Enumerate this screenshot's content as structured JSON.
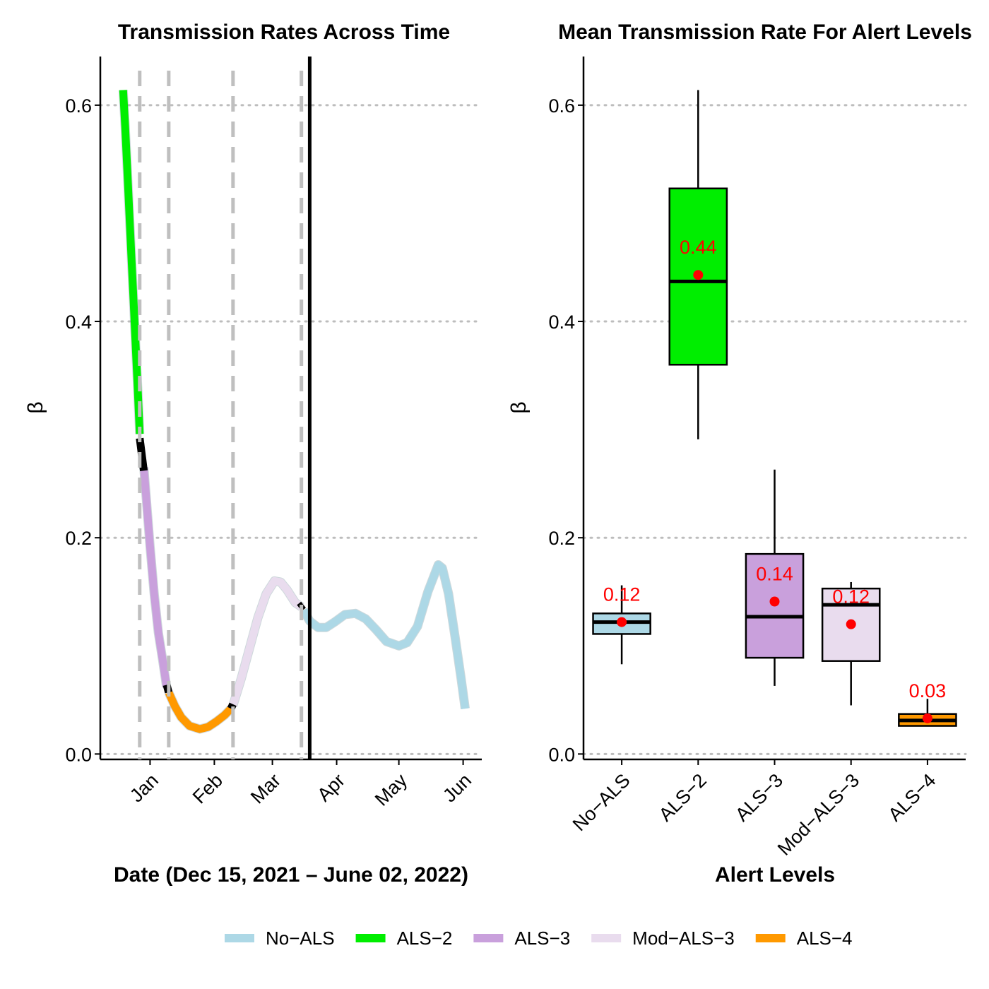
{
  "colors": {
    "No-ALS": "#add8e6",
    "ALS-2": "#00ee00",
    "ALS-3": "#c9a0dc",
    "Mod-ALS-3": "#e9dcee",
    "ALS-4": "#ff9900",
    "mean_point": "#ff0000",
    "grid": "#bdbdbd",
    "dashed_lines": "#bfbfbf"
  },
  "chart_data": [
    {
      "type": "line",
      "title": "Transmission Rates Across Time",
      "xlabel": "Date (Dec 15, 2021 – June 02, 2022)",
      "ylabel": "β",
      "x_ticks": [
        "Jan",
        "Feb",
        "Mar",
        "Apr",
        "May",
        "Jun"
      ],
      "x_tick_dates": [
        "2022-01-01",
        "2022-02-01",
        "2022-03-01",
        "2022-04-01",
        "2022-05-01",
        "2022-06-01"
      ],
      "y_ticks": [
        "0.0",
        "0.2",
        "0.4",
        "0.6"
      ],
      "xlim": [
        "2021-12-08",
        "2022-06-10"
      ],
      "ylim": [
        -0.005,
        0.645
      ],
      "grid": "horizontal dotted",
      "legend_position": "bottom",
      "dashed_vlines": [
        "2021-12-27",
        "2022-01-10",
        "2022-02-10",
        "2022-03-15"
      ],
      "solid_vline": "2022-03-19",
      "series": [
        {
          "name": "ALS-2",
          "x": [
            "2021-12-19",
            "2021-12-20",
            "2021-12-21",
            "2021-12-22",
            "2021-12-23",
            "2021-12-24",
            "2021-12-25",
            "2021-12-26",
            "2021-12-27"
          ],
          "y": [
            0.614,
            0.58,
            0.54,
            0.5,
            0.46,
            0.42,
            0.38,
            0.34,
            0.296
          ]
        },
        {
          "name": "ALS-3",
          "x": [
            "2021-12-29",
            "2022-01-01",
            "2022-01-03",
            "2022-01-05",
            "2022-01-07",
            "2022-01-09"
          ],
          "y": [
            0.265,
            0.192,
            0.148,
            0.112,
            0.088,
            0.062
          ]
        },
        {
          "name": "ALS-4",
          "x": [
            "2022-01-10",
            "2022-01-13",
            "2022-01-16",
            "2022-01-20",
            "2022-01-25",
            "2022-01-29",
            "2022-02-02",
            "2022-02-06",
            "2022-02-09"
          ],
          "y": [
            0.057,
            0.044,
            0.034,
            0.026,
            0.023,
            0.025,
            0.03,
            0.036,
            0.042
          ]
        },
        {
          "name": "Mod-ALS-3",
          "x": [
            "2022-02-10",
            "2022-02-14",
            "2022-02-18",
            "2022-02-22",
            "2022-02-26",
            "2022-03-02",
            "2022-03-05",
            "2022-03-08",
            "2022-03-12",
            "2022-03-15"
          ],
          "y": [
            0.045,
            0.07,
            0.098,
            0.126,
            0.148,
            0.16,
            0.159,
            0.152,
            0.14,
            0.136
          ]
        },
        {
          "name": "No-ALS",
          "x": [
            "2022-03-16",
            "2022-03-19",
            "2022-03-23",
            "2022-03-27",
            "2022-03-31",
            "2022-04-05",
            "2022-04-10",
            "2022-04-15",
            "2022-04-20",
            "2022-04-25",
            "2022-05-01",
            "2022-05-05",
            "2022-05-10",
            "2022-05-15",
            "2022-05-20",
            "2022-05-22",
            "2022-05-25",
            "2022-05-28",
            "2022-05-31",
            "2022-06-02"
          ],
          "y": [
            0.133,
            0.123,
            0.117,
            0.117,
            0.122,
            0.129,
            0.13,
            0.125,
            0.115,
            0.104,
            0.1,
            0.103,
            0.118,
            0.15,
            0.175,
            0.172,
            0.148,
            0.11,
            0.07,
            0.042
          ]
        }
      ],
      "transitions": [
        {
          "x": [
            "2021-12-27",
            "2021-12-29"
          ],
          "y": [
            0.292,
            0.262
          ]
        },
        {
          "x": [
            "2022-01-09",
            "2022-01-10"
          ],
          "y": [
            0.064,
            0.057
          ]
        },
        {
          "x": [
            "2022-02-09",
            "2022-02-10"
          ],
          "y": [
            0.042,
            0.046
          ]
        },
        {
          "x": [
            "2022-03-14",
            "2022-03-16"
          ],
          "y": [
            0.135,
            0.138
          ]
        }
      ]
    },
    {
      "type": "box",
      "title": "Mean Transmission Rate For Alert Levels",
      "xlabel": "Alert Levels",
      "ylabel": "β",
      "categories": [
        "No−ALS",
        "ALS−2",
        "ALS−3",
        "Mod−ALS−3",
        "ALS−4"
      ],
      "y_ticks": [
        "0.0",
        "0.2",
        "0.4",
        "0.6"
      ],
      "ylim": [
        -0.005,
        0.645
      ],
      "grid": "horizontal dotted",
      "boxes": [
        {
          "name": "No-ALS",
          "whisker_low": 0.083,
          "q1": 0.111,
          "median": 0.122,
          "q3": 0.13,
          "whisker_high": 0.156,
          "mean": 0.122,
          "mean_label": "0.12"
        },
        {
          "name": "ALS-2",
          "whisker_low": 0.291,
          "q1": 0.36,
          "median": 0.437,
          "q3": 0.523,
          "whisker_high": 0.614,
          "mean": 0.443,
          "mean_label": "0.44"
        },
        {
          "name": "ALS-3",
          "whisker_low": 0.063,
          "q1": 0.089,
          "median": 0.127,
          "q3": 0.185,
          "whisker_high": 0.263,
          "mean": 0.141,
          "mean_label": "0.14"
        },
        {
          "name": "Mod-ALS-3",
          "whisker_low": 0.045,
          "q1": 0.086,
          "median": 0.138,
          "q3": 0.153,
          "whisker_high": 0.159,
          "mean": 0.12,
          "mean_label": "0.12"
        },
        {
          "name": "ALS-4",
          "whisker_low": 0.026,
          "q1": 0.026,
          "median": 0.031,
          "q3": 0.037,
          "whisker_high": 0.051,
          "mean": 0.033,
          "mean_label": "0.03"
        }
      ]
    }
  ],
  "legend": {
    "items": [
      {
        "label": "No−ALS",
        "key": "No-ALS"
      },
      {
        "label": "ALS−2",
        "key": "ALS-2"
      },
      {
        "label": "ALS−3",
        "key": "ALS-3"
      },
      {
        "label": "Mod−ALS−3",
        "key": "Mod-ALS-3"
      },
      {
        "label": "ALS−4",
        "key": "ALS-4"
      }
    ]
  }
}
